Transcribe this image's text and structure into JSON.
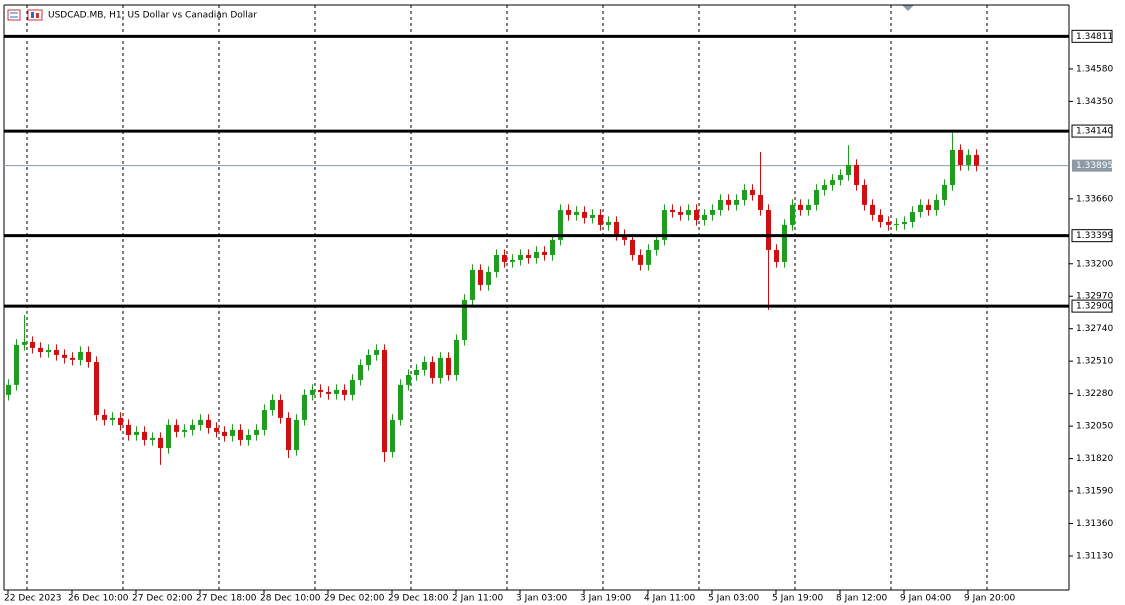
{
  "chart_data": {
    "type": "candlestick",
    "title": "USDCAD.MB, H1:  US Dollar vs Canadian Dollar",
    "up_color": "#1f9d1f",
    "down_color": "#d01010",
    "ylim": [
      1.30889,
      1.35033
    ],
    "yticks": [
      {
        "value": 1.3113,
        "label": "1.31130"
      },
      {
        "value": 1.3136,
        "label": "1.31360"
      },
      {
        "value": 1.3159,
        "label": "1.31590"
      },
      {
        "value": 1.3182,
        "label": "1.31820"
      },
      {
        "value": 1.3205,
        "label": "1.32050"
      },
      {
        "value": 1.3228,
        "label": "1.32280"
      },
      {
        "value": 1.3251,
        "label": "1.32510"
      },
      {
        "value": 1.3274,
        "label": "1.32740"
      },
      {
        "value": 1.3297,
        "label": "1.32970"
      },
      {
        "value": 1.332,
        "label": "1.33200"
      },
      {
        "value": 1.3366,
        "label": "1.33660"
      },
      {
        "value": 1.3435,
        "label": "1.34350"
      },
      {
        "value": 1.3458,
        "label": "1.34580"
      }
    ],
    "levels": [
      1.34811,
      {
        "value": 1.3414,
        "label": "1.34140"
      },
      1.33399,
      {
        "value": 1.329,
        "label": "1.32900"
      }
    ],
    "last_price": 1.33895,
    "categories": [
      "22 Dec 2023",
      null,
      null,
      null,
      null,
      null,
      null,
      null,
      "26 Dec 10:00",
      null,
      null,
      null,
      null,
      null,
      null,
      null,
      "27 Dec 02:00",
      null,
      null,
      null,
      null,
      null,
      null,
      null,
      "27 Dec 18:00",
      null,
      null,
      null,
      null,
      null,
      null,
      null,
      "28 Dec 10:00",
      null,
      null,
      null,
      null,
      null,
      null,
      null,
      "29 Dec 02:00",
      null,
      null,
      null,
      null,
      null,
      null,
      null,
      "29 Dec 18:00",
      null,
      null,
      null,
      null,
      null,
      null,
      null,
      "2 Jan 11:00",
      null,
      null,
      null,
      null,
      null,
      null,
      null,
      "3 Jan 03:00",
      null,
      null,
      null,
      null,
      null,
      null,
      null,
      "3 Jan 19:00",
      null,
      null,
      null,
      null,
      null,
      null,
      null,
      "4 Jan 11:00",
      null,
      null,
      null,
      null,
      null,
      null,
      null,
      "5 Jan 03:00",
      null,
      null,
      null,
      null,
      null,
      null,
      null,
      "5 Jan 19:00",
      null,
      null,
      null,
      null,
      null,
      null,
      null,
      "8 Jan 12:00",
      null,
      null,
      null,
      null,
      null,
      null,
      null,
      "9 Jan 04:00",
      null,
      null,
      null,
      null,
      null,
      null,
      null,
      "9 Jan 20:00",
      null
    ],
    "open": [
      1.32271,
      1.32342,
      1.32625,
      1.32646,
      1.32604,
      1.32575,
      1.32589,
      1.32554,
      1.32533,
      1.32519,
      1.32575,
      1.32504,
      1.32129,
      1.32094,
      1.32108,
      1.32058,
      1.31987,
      1.32009,
      1.31952,
      1.31966,
      1.31895,
      1.32058,
      1.32009,
      1.32023,
      1.32058,
      1.32094,
      1.32037,
      1.32009,
      1.3198,
      1.32023,
      1.31952,
      1.31987,
      1.32023,
      1.32164,
      1.32235,
      1.32108,
      1.31881,
      1.32094,
      1.32271,
      1.32306,
      1.32292,
      1.32278,
      1.32306,
      1.32271,
      1.32377,
      1.32483,
      1.32554,
      1.32589,
      1.31867,
      1.32094,
      1.32342,
      1.32412,
      1.32448,
      1.32504,
      1.32391,
      1.32533,
      1.32412,
      1.3266,
      1.32944,
      1.33156,
      1.3305,
      1.33142,
      1.33262,
      1.33213,
      1.33227,
      1.33262,
      1.33241,
      1.33284,
      1.33262,
      1.33369,
      1.33581,
      1.33546,
      1.33567,
      1.33525,
      1.33546,
      1.33475,
      1.33496,
      1.33404,
      1.33369,
      1.33262,
      1.33192,
      1.33298,
      1.33369,
      1.33581,
      1.33567,
      1.33546,
      1.33581,
      1.3351,
      1.33546,
      1.33581,
      1.33652,
      1.33617,
      1.33652,
      1.33723,
      1.33687,
      1.33581,
      1.33298,
      1.33213,
      1.33475,
      1.33617,
      1.33581,
      1.33617,
      1.33723,
      1.33758,
      1.33794,
      1.33829,
      1.339,
      1.33758,
      1.33617,
      1.33546,
      1.33496,
      1.33475,
      1.33482,
      1.33496,
      1.33567,
      1.33617,
      1.33581,
      1.33652,
      1.33758,
      1.34006,
      1.339,
      1.33971
    ],
    "high": [
      1.32382,
      1.32665,
      1.32837,
      1.32686,
      1.32644,
      1.32629,
      1.32629,
      1.32594,
      1.32573,
      1.32615,
      1.32615,
      1.32544,
      1.32169,
      1.32148,
      1.32148,
      1.32098,
      1.32049,
      1.32049,
      1.32006,
      1.32006,
      1.32098,
      1.32098,
      1.32063,
      1.32098,
      1.32134,
      1.32134,
      1.32077,
      1.32049,
      1.32063,
      1.32063,
      1.32027,
      1.32063,
      1.32204,
      1.32275,
      1.32275,
      1.32148,
      1.32134,
      1.32311,
      1.32346,
      1.32346,
      1.32332,
      1.32346,
      1.32346,
      1.32417,
      1.32523,
      1.32594,
      1.32629,
      1.32629,
      1.32134,
      1.32382,
      1.32452,
      1.32488,
      1.32544,
      1.32544,
      1.32573,
      1.32573,
      1.327,
      1.32984,
      1.33196,
      1.33196,
      1.33182,
      1.33302,
      1.33302,
      1.33267,
      1.33302,
      1.33302,
      1.33324,
      1.33324,
      1.33409,
      1.33621,
      1.33621,
      1.33607,
      1.33607,
      1.33586,
      1.33586,
      1.33536,
      1.33536,
      1.33444,
      1.33409,
      1.33302,
      1.33338,
      1.33409,
      1.33621,
      1.33621,
      1.33607,
      1.33621,
      1.33621,
      1.33586,
      1.33621,
      1.33692,
      1.33692,
      1.33692,
      1.33763,
      1.33763,
      1.33992,
      1.33621,
      1.33338,
      1.33515,
      1.33657,
      1.33657,
      1.33657,
      1.33763,
      1.33798,
      1.33834,
      1.33869,
      1.3404,
      1.3394,
      1.33798,
      1.33657,
      1.33586,
      1.33536,
      1.33522,
      1.33536,
      1.33607,
      1.33657,
      1.33657,
      1.33692,
      1.33798,
      1.34127,
      1.34046,
      1.34011,
      1.34011
    ],
    "low": [
      1.32231,
      1.32302,
      1.32585,
      1.32564,
      1.32535,
      1.32535,
      1.32514,
      1.32493,
      1.32479,
      1.32479,
      1.32464,
      1.32089,
      1.32054,
      1.32054,
      1.32018,
      1.31947,
      1.31947,
      1.31912,
      1.31912,
      1.31775,
      1.31855,
      1.31969,
      1.31969,
      1.31983,
      1.32018,
      1.31997,
      1.31969,
      1.3194,
      1.3194,
      1.31912,
      1.31912,
      1.31947,
      1.31983,
      1.32124,
      1.32068,
      1.31824,
      1.31841,
      1.32054,
      1.32231,
      1.32252,
      1.32238,
      1.32238,
      1.32231,
      1.32231,
      1.32337,
      1.32443,
      1.32514,
      1.31796,
      1.31827,
      1.32054,
      1.32302,
      1.32372,
      1.32408,
      1.32351,
      1.32351,
      1.32372,
      1.32372,
      1.3262,
      1.32904,
      1.3301,
      1.3301,
      1.33102,
      1.33173,
      1.33173,
      1.33187,
      1.33201,
      1.33201,
      1.33222,
      1.33222,
      1.33329,
      1.33506,
      1.33506,
      1.33485,
      1.33485,
      1.33435,
      1.33435,
      1.33364,
      1.33329,
      1.33222,
      1.33152,
      1.33152,
      1.33258,
      1.33329,
      1.33527,
      1.33506,
      1.33506,
      1.3347,
      1.3347,
      1.33506,
      1.33541,
      1.33577,
      1.33577,
      1.33612,
      1.33647,
      1.33541,
      1.32873,
      1.33173,
      1.33173,
      1.33435,
      1.33541,
      1.33541,
      1.33577,
      1.33683,
      1.33718,
      1.33754,
      1.33789,
      1.33718,
      1.33577,
      1.33506,
      1.33456,
      1.33435,
      1.33435,
      1.33442,
      1.33456,
      1.33527,
      1.33541,
      1.33541,
      1.33612,
      1.33718,
      1.3386,
      1.3386,
      1.33855
    ],
    "close": [
      1.32342,
      1.32625,
      1.32646,
      1.32604,
      1.32575,
      1.32589,
      1.32554,
      1.32533,
      1.32519,
      1.32575,
      1.32504,
      1.32129,
      1.32094,
      1.32108,
      1.32058,
      1.31987,
      1.32009,
      1.31952,
      1.31966,
      1.31895,
      1.32058,
      1.32009,
      1.32023,
      1.32058,
      1.32094,
      1.32037,
      1.32009,
      1.3198,
      1.32023,
      1.31952,
      1.31987,
      1.32023,
      1.32164,
      1.32235,
      1.32108,
      1.31881,
      1.32094,
      1.32271,
      1.32306,
      1.32292,
      1.32278,
      1.32306,
      1.32271,
      1.32377,
      1.32483,
      1.32554,
      1.32589,
      1.31867,
      1.32094,
      1.32342,
      1.32412,
      1.32448,
      1.32504,
      1.32391,
      1.32533,
      1.32412,
      1.3266,
      1.32944,
      1.33156,
      1.3305,
      1.33142,
      1.33262,
      1.33213,
      1.33227,
      1.33262,
      1.33241,
      1.33284,
      1.33262,
      1.33369,
      1.33581,
      1.33546,
      1.33567,
      1.33525,
      1.33546,
      1.33475,
      1.33496,
      1.33404,
      1.33369,
      1.33262,
      1.33192,
      1.33298,
      1.33369,
      1.33581,
      1.33567,
      1.33546,
      1.33581,
      1.3351,
      1.33546,
      1.33581,
      1.33652,
      1.33617,
      1.33652,
      1.33723,
      1.33687,
      1.33581,
      1.33298,
      1.33213,
      1.33475,
      1.33617,
      1.33581,
      1.33617,
      1.33723,
      1.33758,
      1.33794,
      1.33829,
      1.339,
      1.33758,
      1.33617,
      1.33546,
      1.33496,
      1.33475,
      1.33482,
      1.33496,
      1.33567,
      1.33617,
      1.33581,
      1.33652,
      1.33758,
      1.34006,
      1.339,
      1.33971,
      1.33895
    ]
  }
}
